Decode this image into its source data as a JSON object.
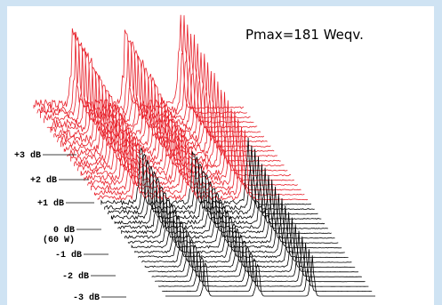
{
  "chart_data": {
    "type": "line",
    "title": "",
    "annotation": "Pmax=181 Weqv.",
    "y_axis_levels": [
      {
        "label": "+3 dB",
        "value": 3
      },
      {
        "label": "+2 dB",
        "value": 2
      },
      {
        "label": "+1 dB",
        "value": 1
      },
      {
        "label": "0 dB",
        "sublabel": "(60 W)",
        "value": 0
      },
      {
        "label": "-1 dB",
        "value": -1
      },
      {
        "label": "-2 dB",
        "value": -2
      },
      {
        "label": "-3 dB",
        "value": -3
      }
    ],
    "trace_count": 40,
    "red_traces_above_db": 0,
    "spectral_peaks": [
      {
        "position": 0.19,
        "relative_height": 1.0
      },
      {
        "position": 0.44,
        "relative_height": 0.95
      },
      {
        "position": 0.7,
        "relative_height": 1.0
      }
    ],
    "colors": {
      "above_reference": "#e8202a",
      "below_reference": "#000000",
      "background": "#cfe3f3"
    }
  }
}
